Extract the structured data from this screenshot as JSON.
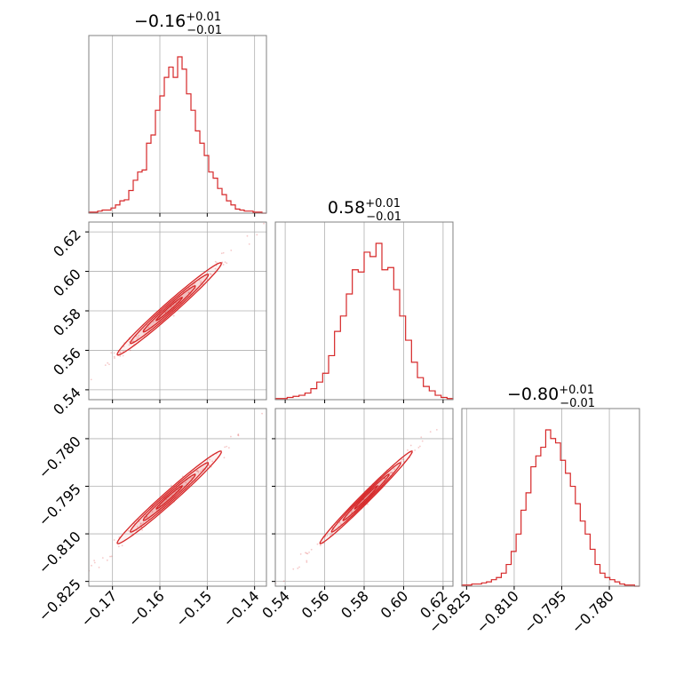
{
  "figure": {
    "colors": {
      "hist": "#d62728",
      "contour": "#d62728",
      "grid": "#b0b0b0",
      "frame": "#808080",
      "text": "#000000"
    }
  },
  "chart_data": {
    "type": "corner",
    "parameters": [
      {
        "range": [
          -0.175,
          -0.1375
        ],
        "ticks": [
          -0.17,
          -0.16,
          -0.15,
          -0.14
        ],
        "tick_labels": [
          "−0.17",
          "−0.16",
          "−0.15",
          "−0.14"
        ]
      },
      {
        "range": [
          0.535,
          0.625
        ],
        "ticks": [
          0.54,
          0.56,
          0.58,
          0.6,
          0.62
        ],
        "tick_labels": [
          "0.54",
          "0.56",
          "0.58",
          "0.60",
          "0.62"
        ]
      },
      {
        "range": [
          -0.8265,
          -0.7705
        ],
        "ticks": [
          -0.825,
          -0.81,
          -0.795,
          -0.78
        ],
        "tick_labels": [
          "−0.825",
          "−0.810",
          "−0.795",
          "−0.780"
        ]
      }
    ],
    "titles": [
      {
        "value": "−0.16",
        "plus": "+0.01",
        "minus": "−0.01"
      },
      {
        "value": "0.58",
        "plus": "+0.01",
        "minus": "−0.01"
      },
      {
        "value": "−0.80",
        "plus": "+0.01",
        "minus": "−0.01"
      }
    ],
    "histograms": [
      {
        "counts": [
          0.5,
          0.5,
          1,
          1.5,
          1.5,
          2.5,
          4,
          6,
          6.5,
          11,
          16,
          20,
          21,
          34,
          38,
          50,
          57,
          66,
          71,
          66,
          76,
          70,
          58,
          50,
          40,
          34,
          28,
          20,
          17,
          12,
          9,
          6,
          4,
          2,
          1.5,
          1,
          1,
          0.5,
          0.5,
          0
        ]
      },
      {
        "counts": [
          0.5,
          0.5,
          1,
          1.5,
          2,
          3,
          5,
          8,
          12,
          20,
          31,
          38,
          48,
          59,
          58,
          67,
          65,
          71,
          59,
          60,
          50,
          38,
          27,
          17,
          10,
          6,
          4,
          2,
          1,
          0.5
        ]
      },
      {
        "counts": [
          0.5,
          0.5,
          1,
          1,
          1.5,
          2,
          3,
          4,
          6,
          10,
          16,
          24,
          35,
          43,
          55,
          60,
          64,
          72,
          68,
          66,
          58,
          52,
          46,
          38,
          30,
          24,
          17,
          10,
          6,
          4,
          3,
          2,
          1,
          0.5,
          0.5,
          0
        ]
      }
    ],
    "pairs": [
      {
        "x_param": 0,
        "y_param": 1,
        "x_center": -0.158,
        "y_center": 0.581,
        "x_sigma": 0.0055,
        "y_sigma": 0.0117,
        "corr": 0.985
      },
      {
        "x_param": 0,
        "y_param": 2,
        "x_center": -0.158,
        "y_center": -0.7985,
        "x_sigma": 0.0055,
        "y_sigma": 0.0073,
        "corr": 0.985
      },
      {
        "x_param": 1,
        "y_param": 2,
        "x_center": 0.581,
        "y_center": -0.7985,
        "x_sigma": 0.0117,
        "y_sigma": 0.0073,
        "corr": 0.99
      }
    ]
  }
}
